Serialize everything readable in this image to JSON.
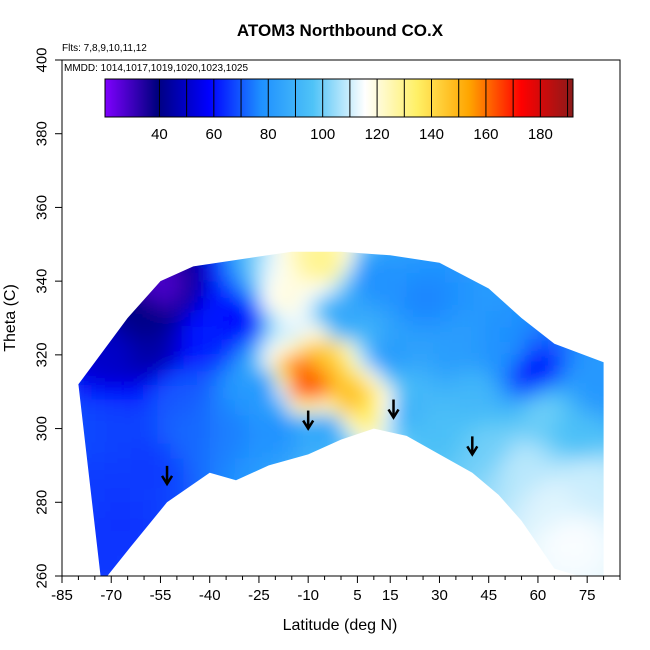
{
  "chart_data": {
    "type": "heatmap",
    "title": "ATOM3 Northbound CO.X",
    "notes": {
      "flights": "Flts: 7,8,9,10,11,12",
      "dates": "MMDD: 1014,1017,1019,1020,1023,1025"
    },
    "xlabel": "Latitude (deg N)",
    "ylabel": "Theta (C)",
    "xlim": [
      -85,
      85
    ],
    "ylim": [
      260,
      400
    ],
    "x_ticks": [
      -85,
      -70,
      -55,
      -40,
      -25,
      -10,
      5,
      15,
      30,
      45,
      60,
      75
    ],
    "y_ticks": [
      260,
      280,
      300,
      320,
      340,
      360,
      380,
      400
    ],
    "colorbar": {
      "min": 20,
      "max": 192,
      "tick_values": [
        40,
        60,
        80,
        100,
        120,
        140,
        160,
        180
      ],
      "tick_labels": [
        "40",
        "60",
        "80",
        "100",
        "120",
        "140",
        "160",
        "180"
      ],
      "colors": [
        "#7f00ff",
        "#00007f",
        "#0000ff",
        "#1e90ff",
        "#4fc3f7",
        "#ffffff",
        "#fff066",
        "#ffa500",
        "#ff0000",
        "#8b1a1a"
      ]
    },
    "surface_boundary": [
      {
        "lat": -73,
        "theta": 258
      },
      {
        "lat": -64,
        "theta": 268
      },
      {
        "lat": -53,
        "theta": 280
      },
      {
        "lat": -40,
        "theta": 288
      },
      {
        "lat": -32,
        "theta": 286
      },
      {
        "lat": -22,
        "theta": 290
      },
      {
        "lat": -10,
        "theta": 293
      },
      {
        "lat": 0,
        "theta": 297
      },
      {
        "lat": 10,
        "theta": 300
      },
      {
        "lat": 20,
        "theta": 298
      },
      {
        "lat": 30,
        "theta": 293
      },
      {
        "lat": 40,
        "theta": 288
      },
      {
        "lat": 48,
        "theta": 282
      },
      {
        "lat": 55,
        "theta": 275
      },
      {
        "lat": 65,
        "theta": 262
      },
      {
        "lat": 80,
        "theta": 258
      }
    ],
    "upper_boundary": [
      {
        "lat": -80,
        "theta": 312
      },
      {
        "lat": -75,
        "theta": 318
      },
      {
        "lat": -65,
        "theta": 330
      },
      {
        "lat": -55,
        "theta": 340
      },
      {
        "lat": -45,
        "theta": 344
      },
      {
        "lat": -30,
        "theta": 346
      },
      {
        "lat": -15,
        "theta": 348
      },
      {
        "lat": 0,
        "theta": 348
      },
      {
        "lat": 15,
        "theta": 347
      },
      {
        "lat": 30,
        "theta": 345
      },
      {
        "lat": 45,
        "theta": 338
      },
      {
        "lat": 55,
        "theta": 330
      },
      {
        "lat": 65,
        "theta": 323
      },
      {
        "lat": 80,
        "theta": 318
      }
    ],
    "field": [
      {
        "lat": -80,
        "theta": 300,
        "value": 68
      },
      {
        "lat": -75,
        "theta": 280,
        "value": 66
      },
      {
        "lat": -70,
        "theta": 275,
        "value": 65
      },
      {
        "lat": -70,
        "theta": 300,
        "value": 67
      },
      {
        "lat": -70,
        "theta": 320,
        "value": 50
      },
      {
        "lat": -60,
        "theta": 290,
        "value": 66
      },
      {
        "lat": -60,
        "theta": 330,
        "value": 40
      },
      {
        "lat": -58,
        "theta": 320,
        "value": 45
      },
      {
        "lat": -55,
        "theta": 338,
        "value": 28
      },
      {
        "lat": -50,
        "theta": 310,
        "value": 70
      },
      {
        "lat": -45,
        "theta": 300,
        "value": 72
      },
      {
        "lat": -40,
        "theta": 325,
        "value": 62
      },
      {
        "lat": -35,
        "theta": 300,
        "value": 75
      },
      {
        "lat": -30,
        "theta": 330,
        "value": 58
      },
      {
        "lat": -25,
        "theta": 310,
        "value": 80
      },
      {
        "lat": -20,
        "theta": 300,
        "value": 78
      },
      {
        "lat": -18,
        "theta": 335,
        "value": 120
      },
      {
        "lat": -15,
        "theta": 325,
        "value": 110
      },
      {
        "lat": -12,
        "theta": 318,
        "value": 160
      },
      {
        "lat": -10,
        "theta": 312,
        "value": 165
      },
      {
        "lat": -6,
        "theta": 320,
        "value": 145
      },
      {
        "lat": -5,
        "theta": 345,
        "value": 130
      },
      {
        "lat": -5,
        "theta": 300,
        "value": 85
      },
      {
        "lat": 0,
        "theta": 330,
        "value": 85
      },
      {
        "lat": 4,
        "theta": 308,
        "value": 150
      },
      {
        "lat": 8,
        "theta": 306,
        "value": 135
      },
      {
        "lat": 10,
        "theta": 340,
        "value": 78
      },
      {
        "lat": 15,
        "theta": 320,
        "value": 82
      },
      {
        "lat": 20,
        "theta": 305,
        "value": 90
      },
      {
        "lat": 25,
        "theta": 335,
        "value": 76
      },
      {
        "lat": 30,
        "theta": 300,
        "value": 95
      },
      {
        "lat": 35,
        "theta": 320,
        "value": 82
      },
      {
        "lat": 40,
        "theta": 310,
        "value": 92
      },
      {
        "lat": 45,
        "theta": 295,
        "value": 100
      },
      {
        "lat": 50,
        "theta": 320,
        "value": 78
      },
      {
        "lat": 55,
        "theta": 290,
        "value": 108
      },
      {
        "lat": 58,
        "theta": 315,
        "value": 60
      },
      {
        "lat": 62,
        "theta": 305,
        "value": 100
      },
      {
        "lat": 65,
        "theta": 280,
        "value": 112
      },
      {
        "lat": 70,
        "theta": 270,
        "value": 115
      },
      {
        "lat": 72,
        "theta": 300,
        "value": 95
      },
      {
        "lat": 75,
        "theta": 285,
        "value": 110
      },
      {
        "lat": 78,
        "theta": 310,
        "value": 80
      }
    ],
    "tropopause_arrows": [
      {
        "lat": -53,
        "theta": 285
      },
      {
        "lat": -10,
        "theta": 300
      },
      {
        "lat": 16,
        "theta": 303
      },
      {
        "lat": 40,
        "theta": 293
      }
    ],
    "grid": false,
    "legend": "top"
  }
}
